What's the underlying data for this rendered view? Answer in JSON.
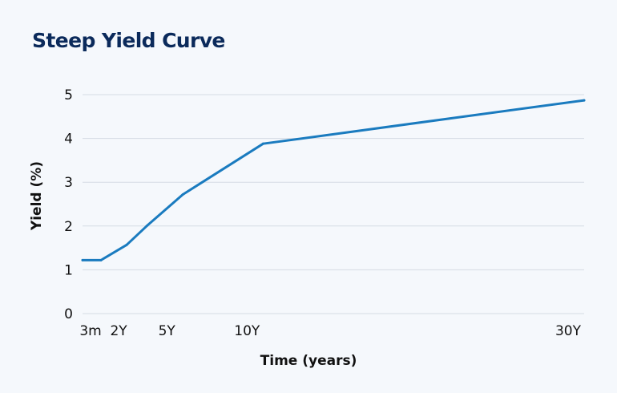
{
  "chart_data": {
    "type": "line",
    "title": "Steep Yield Curve",
    "xlabel": "Time (years)",
    "ylabel": "Yield (%)",
    "x_tick_labels": [
      {
        "label": "3m",
        "value": 0.25
      },
      {
        "label": "2Y",
        "value": 2
      },
      {
        "label": "5Y",
        "value": 5
      },
      {
        "label": "10Y",
        "value": 10
      },
      {
        "label": "30Y",
        "value": 30
      }
    ],
    "y_ticks": [
      0,
      1,
      2,
      3,
      4,
      5
    ],
    "xlim": [
      -0.25,
      31
    ],
    "ylim": [
      0,
      5
    ],
    "grid": true,
    "series": [
      {
        "color": "#1a7bbf",
        "points": [
          {
            "x": -0.25,
            "y": 1.22
          },
          {
            "x": 0.9,
            "y": 1.22
          },
          {
            "x": 2.5,
            "y": 1.57
          },
          {
            "x": 3.75,
            "y": 2.0
          },
          {
            "x": 6.0,
            "y": 2.72
          },
          {
            "x": 11.0,
            "y": 3.88
          },
          {
            "x": 31.0,
            "y": 4.87
          }
        ]
      }
    ]
  },
  "colors": {
    "background": "#f5f8fc",
    "title": "#0b2a5b",
    "grid": "#d5dbe3",
    "line": "#1a7bbf"
  }
}
